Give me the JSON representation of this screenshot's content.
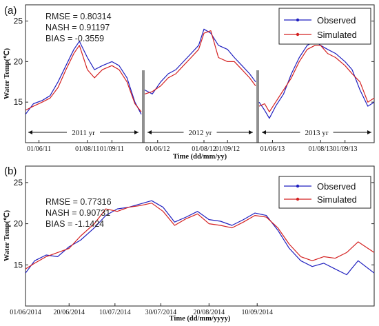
{
  "chart_data": [
    {
      "type": "line",
      "panel": "(a)",
      "ylabel": "Water Temp(℃)",
      "xlabel": "Time (dd/mm/yy)",
      "ylim": [
        10,
        27
      ],
      "yticks": [
        15,
        20,
        25
      ],
      "legend": {
        "placement": "top-right",
        "entries": [
          "Observed",
          "Simulated"
        ]
      },
      "stats": [
        "RMSE = 0.80314",
        "NASH = 0.91197",
        "BIAS = -0.3559"
      ],
      "colors": {
        "Observed": "#1f1fbf",
        "Simulated": "#d42020"
      },
      "segments": [
        {
          "year_label": "2011 yr",
          "xticks": [
            "01/06/11",
            "01/08/11",
            "01/09/11"
          ],
          "x_range": [
            "2011-05-15",
            "2011-10-08"
          ],
          "xtick_dates": [
            "2011-06-01",
            "2011-08-01",
            "2011-09-01"
          ],
          "series": [
            {
              "name": "Observed",
              "x": [
                "2011-05-15",
                "2011-05-25",
                "2011-06-05",
                "2011-06-15",
                "2011-06-25",
                "2011-07-05",
                "2011-07-15",
                "2011-07-22",
                "2011-08-01",
                "2011-08-10",
                "2011-08-20",
                "2011-09-01",
                "2011-09-10",
                "2011-09-20",
                "2011-09-30",
                "2011-10-08"
              ],
              "y": [
                13.5,
                14.8,
                15.2,
                15.8,
                17.5,
                19.5,
                21.5,
                22.5,
                20.5,
                19.0,
                19.5,
                20.0,
                19.5,
                18.0,
                15.0,
                13.5
              ]
            },
            {
              "name": "Simulated",
              "x": [
                "2011-05-15",
                "2011-05-25",
                "2011-06-05",
                "2011-06-15",
                "2011-06-25",
                "2011-07-05",
                "2011-07-15",
                "2011-07-22",
                "2011-08-01",
                "2011-08-10",
                "2011-08-20",
                "2011-09-01",
                "2011-09-10",
                "2011-09-20",
                "2011-09-30",
                "2011-10-08"
              ],
              "y": [
                14.0,
                14.5,
                15.0,
                15.5,
                16.8,
                19.0,
                21.0,
                22.0,
                19.0,
                18.0,
                19.0,
                19.5,
                19.0,
                17.5,
                14.8,
                13.8
              ]
            }
          ]
        },
        {
          "year_label": "2012 yr",
          "xticks": [
            "01/06/12",
            "01/08/12",
            "01/09/12"
          ],
          "x_range": [
            "2012-05-15",
            "2012-10-08"
          ],
          "xtick_dates": [
            "2012-06-01",
            "2012-08-01",
            "2012-09-01"
          ],
          "series": [
            {
              "name": "Observed",
              "x": [
                "2012-05-15",
                "2012-05-25",
                "2012-06-05",
                "2012-06-15",
                "2012-06-25",
                "2012-07-05",
                "2012-07-15",
                "2012-07-25",
                "2012-08-01",
                "2012-08-10",
                "2012-08-20",
                "2012-09-01",
                "2012-09-10",
                "2012-09-20",
                "2012-09-30",
                "2012-10-08"
              ],
              "y": [
                16.5,
                16.0,
                17.5,
                18.5,
                19.0,
                20.0,
                21.0,
                22.0,
                24.0,
                23.5,
                22.0,
                21.5,
                20.5,
                19.5,
                18.5,
                17.5
              ]
            },
            {
              "name": "Simulated",
              "x": [
                "2012-05-15",
                "2012-05-25",
                "2012-06-05",
                "2012-06-15",
                "2012-06-25",
                "2012-07-05",
                "2012-07-15",
                "2012-07-25",
                "2012-08-01",
                "2012-08-10",
                "2012-08-20",
                "2012-09-01",
                "2012-09-10",
                "2012-09-20",
                "2012-09-30",
                "2012-10-08"
              ],
              "y": [
                16.0,
                16.3,
                17.0,
                18.0,
                18.5,
                19.5,
                20.5,
                21.5,
                23.5,
                23.8,
                20.5,
                20.0,
                20.0,
                19.0,
                18.0,
                17.0
              ]
            }
          ]
        },
        {
          "year_label": "2013 yr",
          "xticks": [
            "01/06/13",
            "01/08/13",
            "01/09/13"
          ],
          "x_range": [
            "2013-05-15",
            "2013-10-08"
          ],
          "xtick_dates": [
            "2013-06-01",
            "2013-08-01",
            "2013-09-01"
          ],
          "series": [
            {
              "name": "Observed",
              "x": [
                "2013-05-15",
                "2013-05-22",
                "2013-05-28",
                "2013-06-05",
                "2013-06-15",
                "2013-06-25",
                "2013-07-05",
                "2013-07-15",
                "2013-07-25",
                "2013-08-01",
                "2013-08-10",
                "2013-08-20",
                "2013-09-01",
                "2013-09-10",
                "2013-09-20",
                "2013-09-30",
                "2013-10-08"
              ],
              "y": [
                15.0,
                14.0,
                13.0,
                14.5,
                16.0,
                18.5,
                20.5,
                22.0,
                22.5,
                22.0,
                21.5,
                21.0,
                20.0,
                19.0,
                16.5,
                14.5,
                15.0
              ]
            },
            {
              "name": "Simulated",
              "x": [
                "2013-05-15",
                "2013-05-22",
                "2013-05-28",
                "2013-06-05",
                "2013-06-15",
                "2013-06-25",
                "2013-07-05",
                "2013-07-15",
                "2013-07-25",
                "2013-08-01",
                "2013-08-10",
                "2013-08-20",
                "2013-09-01",
                "2013-09-10",
                "2013-09-20",
                "2013-09-30",
                "2013-10-08"
              ],
              "y": [
                14.5,
                14.8,
                13.8,
                15.0,
                16.5,
                18.0,
                20.0,
                21.5,
                22.0,
                22.0,
                21.0,
                20.5,
                19.5,
                18.5,
                17.5,
                15.0,
                15.5
              ]
            }
          ]
        }
      ]
    },
    {
      "type": "line",
      "panel": "(b)",
      "ylabel": "Water Temp(℃)",
      "xlabel": "Time (dd/mm/yyyy)",
      "ylim": [
        10,
        27
      ],
      "yticks": [
        15,
        20,
        25
      ],
      "legend": {
        "placement": "top-right",
        "entries": [
          "Observed",
          "Simulated"
        ]
      },
      "stats": [
        "RMSE = 0.77316",
        "NASH = 0.90731",
        "BIAS = -1.1424"
      ],
      "colors": {
        "Observed": "#1f1fbf",
        "Simulated": "#d42020"
      },
      "x_range": [
        "2014-06-01",
        "2014-10-31"
      ],
      "xticks": [
        "01/06/2014",
        "20/06/2014",
        "10/07/2014",
        "30/07/2014",
        "20/08/2014",
        "10/09/2014"
      ],
      "xtick_dates": [
        "2014-06-01",
        "2014-06-20",
        "2014-07-10",
        "2014-07-30",
        "2014-08-20",
        "2014-09-10"
      ],
      "series": [
        {
          "name": "Observed",
          "x": [
            "2014-06-01",
            "2014-06-05",
            "2014-06-10",
            "2014-06-15",
            "2014-06-20",
            "2014-06-25",
            "2014-07-01",
            "2014-07-06",
            "2014-07-11",
            "2014-07-16",
            "2014-07-21",
            "2014-07-26",
            "2014-07-31",
            "2014-08-05",
            "2014-08-10",
            "2014-08-15",
            "2014-08-20",
            "2014-08-25",
            "2014-08-30",
            "2014-09-04",
            "2014-09-09",
            "2014-09-14",
            "2014-09-19",
            "2014-09-24",
            "2014-09-29",
            "2014-10-04",
            "2014-10-09",
            "2014-10-14",
            "2014-10-19",
            "2014-10-24",
            "2014-10-31"
          ],
          "y": [
            14.0,
            15.5,
            16.2,
            16.0,
            17.2,
            18.0,
            19.5,
            21.0,
            21.8,
            22.0,
            22.4,
            22.8,
            22.0,
            20.2,
            20.8,
            21.5,
            20.5,
            20.3,
            19.8,
            20.5,
            21.3,
            21.0,
            19.2,
            17.0,
            15.5,
            14.8,
            15.2,
            14.5,
            13.8,
            15.5,
            14.0
          ]
        },
        {
          "name": "Simulated",
          "x": [
            "2014-06-01",
            "2014-06-05",
            "2014-06-10",
            "2014-06-15",
            "2014-06-20",
            "2014-06-25",
            "2014-07-01",
            "2014-07-06",
            "2014-07-11",
            "2014-07-16",
            "2014-07-21",
            "2014-07-26",
            "2014-07-31",
            "2014-08-05",
            "2014-08-10",
            "2014-08-15",
            "2014-08-20",
            "2014-08-25",
            "2014-08-30",
            "2014-09-04",
            "2014-09-09",
            "2014-09-14",
            "2014-09-19",
            "2014-09-24",
            "2014-09-29",
            "2014-10-04",
            "2014-10-09",
            "2014-10-14",
            "2014-10-19",
            "2014-10-24",
            "2014-10-31"
          ],
          "y": [
            14.5,
            15.2,
            16.0,
            16.5,
            17.0,
            18.5,
            20.0,
            21.8,
            21.5,
            22.0,
            22.2,
            22.5,
            21.5,
            19.8,
            20.6,
            21.2,
            20.0,
            19.8,
            19.5,
            20.2,
            21.0,
            20.8,
            19.5,
            17.5,
            16.0,
            15.5,
            16.0,
            15.8,
            16.5,
            17.8,
            16.5
          ]
        }
      ]
    }
  ]
}
